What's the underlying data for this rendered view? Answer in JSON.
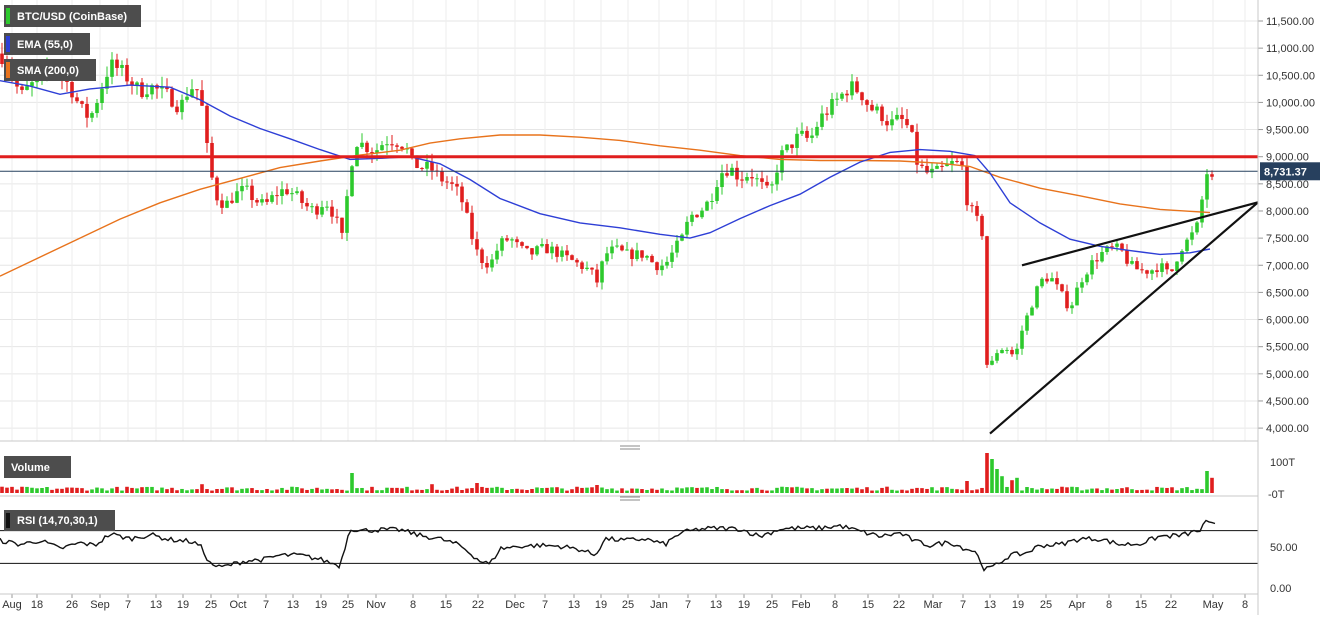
{
  "chart_data": {
    "type": "candlestick",
    "title": "BTC/USD (CoinBase)",
    "indicators": {
      "ema": {
        "label": "EMA (55,0)",
        "color": "#2e3fd6"
      },
      "sma": {
        "label": "SMA (200,0)",
        "color": "#e8731c"
      }
    },
    "price_axis": {
      "ticks": [
        "11,500.00",
        "11,000.00",
        "10,500.00",
        "10,000.00",
        "9,500.00",
        "9,000.00",
        "8,500.00",
        "8,000.00",
        "7,500.00",
        "7,000.00",
        "6,500.00",
        "6,000.00",
        "5,500.00",
        "5,000.00",
        "4,500.00",
        "4,000.00"
      ],
      "tick_values": [
        11500,
        11000,
        10500,
        10000,
        9500,
        9000,
        8500,
        8000,
        7500,
        7000,
        6500,
        6000,
        5500,
        5000,
        4500,
        4000
      ],
      "ylim": [
        3720,
        11920
      ]
    },
    "last_price": {
      "label": "8,731.37",
      "value": 8731.37,
      "color": "#27405e"
    },
    "resistance": {
      "value": 9000,
      "color": "#e01e1e"
    },
    "date_axis": {
      "labels": [
        "Aug",
        "18",
        "26",
        "Sep",
        "7",
        "13",
        "19",
        "25",
        "Oct",
        "7",
        "13",
        "19",
        "25",
        "Nov",
        "8",
        "15",
        "22",
        "Dec",
        "7",
        "13",
        "19",
        "25",
        "Jan",
        "7",
        "13",
        "19",
        "25",
        "Feb",
        "8",
        "15",
        "22",
        "Mar",
        "7",
        "13",
        "19",
        "25",
        "Apr",
        "8",
        "15",
        "22",
        "May",
        "8"
      ]
    },
    "series": {
      "close_key": [
        [
          0,
          10900
        ],
        [
          10,
          10700
        ],
        [
          20,
          10100
        ],
        [
          30,
          10300
        ],
        [
          40,
          10400
        ],
        [
          50,
          10700
        ],
        [
          60,
          10500
        ],
        [
          70,
          10300
        ],
        [
          80,
          9900
        ],
        [
          90,
          9700
        ],
        [
          100,
          10200
        ],
        [
          110,
          10700
        ],
        [
          120,
          10600
        ],
        [
          130,
          10400
        ],
        [
          140,
          10200
        ],
        [
          150,
          10300
        ],
        [
          160,
          10200
        ],
        [
          170,
          10100
        ],
        [
          180,
          9900
        ],
        [
          190,
          10300
        ],
        [
          200,
          10200
        ],
        [
          208,
          9000
        ],
        [
          215,
          8300
        ],
        [
          225,
          8100
        ],
        [
          235,
          8300
        ],
        [
          245,
          8400
        ],
        [
          255,
          8200
        ],
        [
          265,
          8100
        ],
        [
          275,
          8300
        ],
        [
          285,
          8400
        ],
        [
          295,
          8300
        ],
        [
          305,
          8100
        ],
        [
          315,
          8000
        ],
        [
          325,
          8200
        ],
        [
          335,
          7900
        ],
        [
          342,
          7500
        ],
        [
          350,
          8700
        ],
        [
          355,
          9300
        ],
        [
          365,
          9200
        ],
        [
          375,
          9100
        ],
        [
          385,
          9300
        ],
        [
          395,
          9300
        ],
        [
          405,
          9200
        ],
        [
          412,
          8900
        ],
        [
          420,
          8800
        ],
        [
          430,
          8800
        ],
        [
          440,
          8600
        ],
        [
          450,
          8500
        ],
        [
          460,
          8300
        ],
        [
          468,
          7800
        ],
        [
          475,
          7300
        ],
        [
          482,
          7100
        ],
        [
          490,
          7000
        ],
        [
          500,
          7400
        ],
        [
          510,
          7500
        ],
        [
          520,
          7300
        ],
        [
          530,
          7200
        ],
        [
          540,
          7300
        ],
        [
          550,
          7300
        ],
        [
          560,
          7200
        ],
        [
          570,
          7100
        ],
        [
          580,
          7000
        ],
        [
          590,
          6900
        ],
        [
          597,
          6700
        ],
        [
          605,
          7200
        ],
        [
          615,
          7300
        ],
        [
          625,
          7200
        ],
        [
          635,
          7200
        ],
        [
          645,
          7200
        ],
        [
          655,
          7000
        ],
        [
          665,
          7000
        ],
        [
          675,
          7300
        ],
        [
          682,
          7500
        ],
        [
          690,
          7900
        ],
        [
          700,
          8000
        ],
        [
          710,
          8200
        ],
        [
          720,
          8700
        ],
        [
          730,
          8800
        ],
        [
          740,
          8600
        ],
        [
          750,
          8700
        ],
        [
          760,
          8500
        ],
        [
          770,
          8300
        ],
        [
          780,
          9000
        ],
        [
          790,
          9200
        ],
        [
          800,
          9400
        ],
        [
          810,
          9300
        ],
        [
          820,
          9700
        ],
        [
          830,
          9900
        ],
        [
          840,
          10100
        ],
        [
          850,
          10300
        ],
        [
          860,
          10200
        ],
        [
          870,
          9900
        ],
        [
          880,
          9800
        ],
        [
          890,
          9600
        ],
        [
          900,
          9700
        ],
        [
          910,
          9500
        ],
        [
          917,
          8900
        ],
        [
          925,
          8700
        ],
        [
          935,
          8700
        ],
        [
          945,
          8800
        ],
        [
          955,
          8900
        ],
        [
          962,
          8800
        ],
        [
          968,
          8100
        ],
        [
          975,
          7900
        ],
        [
          982,
          7600
        ],
        [
          986,
          5200
        ],
        [
          990,
          5100
        ],
        [
          996,
          5400
        ],
        [
          1005,
          5500
        ],
        [
          1015,
          5300
        ],
        [
          1022,
          5800
        ],
        [
          1030,
          6200
        ],
        [
          1040,
          6700
        ],
        [
          1050,
          6800
        ],
        [
          1060,
          6500
        ],
        [
          1070,
          6200
        ],
        [
          1080,
          6700
        ],
        [
          1090,
          7000
        ],
        [
          1100,
          7200
        ],
        [
          1110,
          7300
        ],
        [
          1120,
          7300
        ],
        [
          1130,
          7000
        ],
        [
          1140,
          6900
        ],
        [
          1150,
          6900
        ],
        [
          1160,
          7000
        ],
        [
          1170,
          6800
        ],
        [
          1180,
          7300
        ],
        [
          1190,
          7500
        ],
        [
          1200,
          7800
        ],
        [
          1205,
          8800
        ],
        [
          1211,
          8500
        ],
        [
          1216,
          8731
        ]
      ],
      "ema_key": [
        [
          0,
          10400
        ],
        [
          30,
          10300
        ],
        [
          60,
          10150
        ],
        [
          90,
          10250
        ],
        [
          130,
          10320
        ],
        [
          170,
          10280
        ],
        [
          200,
          10050
        ],
        [
          230,
          9750
        ],
        [
          260,
          9520
        ],
        [
          290,
          9330
        ],
        [
          320,
          9130
        ],
        [
          350,
          8950
        ],
        [
          380,
          8970
        ],
        [
          410,
          9000
        ],
        [
          440,
          8870
        ],
        [
          470,
          8580
        ],
        [
          500,
          8230
        ],
        [
          540,
          7950
        ],
        [
          580,
          7780
        ],
        [
          620,
          7690
        ],
        [
          660,
          7570
        ],
        [
          690,
          7500
        ],
        [
          710,
          7600
        ],
        [
          740,
          7860
        ],
        [
          770,
          8100
        ],
        [
          800,
          8310
        ],
        [
          830,
          8620
        ],
        [
          860,
          8900
        ],
        [
          890,
          9080
        ],
        [
          920,
          9130
        ],
        [
          950,
          9100
        ],
        [
          975,
          9020
        ],
        [
          990,
          8700
        ],
        [
          1010,
          8150
        ],
        [
          1040,
          7780
        ],
        [
          1070,
          7480
        ],
        [
          1100,
          7350
        ],
        [
          1130,
          7270
        ],
        [
          1160,
          7200
        ],
        [
          1190,
          7230
        ],
        [
          1210,
          7300
        ]
      ],
      "sma_key": [
        [
          0,
          6800
        ],
        [
          40,
          7150
        ],
        [
          80,
          7500
        ],
        [
          120,
          7850
        ],
        [
          160,
          8150
        ],
        [
          200,
          8400
        ],
        [
          240,
          8600
        ],
        [
          280,
          8800
        ],
        [
          320,
          8920
        ],
        [
          360,
          9030
        ],
        [
          400,
          9120
        ],
        [
          430,
          9250
        ],
        [
          460,
          9330
        ],
        [
          500,
          9400
        ],
        [
          540,
          9400
        ],
        [
          580,
          9360
        ],
        [
          620,
          9300
        ],
        [
          660,
          9200
        ],
        [
          700,
          9120
        ],
        [
          740,
          9020
        ],
        [
          780,
          8950
        ],
        [
          820,
          8930
        ],
        [
          860,
          8930
        ],
        [
          900,
          8920
        ],
        [
          940,
          8880
        ],
        [
          970,
          8820
        ],
        [
          1000,
          8620
        ],
        [
          1040,
          8420
        ],
        [
          1080,
          8280
        ],
        [
          1120,
          8130
        ],
        [
          1160,
          8030
        ],
        [
          1210,
          7970
        ]
      ],
      "volume_spikes": [
        [
          204,
          22
        ],
        [
          350,
          50
        ],
        [
          432,
          22
        ],
        [
          475,
          25
        ],
        [
          596,
          20
        ],
        [
          968,
          30
        ],
        [
          986,
          100
        ],
        [
          992,
          85
        ],
        [
          998,
          60
        ],
        [
          1004,
          42
        ],
        [
          1010,
          32
        ],
        [
          1016,
          38
        ],
        [
          1205,
          55
        ],
        [
          1212,
          38
        ]
      ]
    },
    "trendlines": [
      {
        "from": {
          "t": 990,
          "price": 3900
        },
        "to": {
          "t": 1258,
          "price": 8160
        },
        "color": "#111111"
      },
      {
        "from": {
          "t": 1022,
          "price": 7000
        },
        "to": {
          "t": 1258,
          "price": 8160
        },
        "color": "#111111"
      }
    ],
    "volume": {
      "label": "Volume",
      "axis_labels": [
        "100T",
        "-0T"
      ],
      "up_color": "#2dc92d",
      "down_color": "#e01e1e"
    },
    "rsi": {
      "label": "RSI (14,70,30,1)",
      "axis_labels": [
        "50.00",
        "0.00"
      ],
      "upper": 70,
      "lower": 30,
      "key": [
        [
          0,
          58
        ],
        [
          20,
          53
        ],
        [
          40,
          58
        ],
        [
          60,
          48
        ],
        [
          80,
          55
        ],
        [
          95,
          52
        ],
        [
          110,
          66
        ],
        [
          130,
          60
        ],
        [
          150,
          65
        ],
        [
          170,
          59
        ],
        [
          190,
          57
        ],
        [
          200,
          52
        ],
        [
          210,
          30
        ],
        [
          220,
          25
        ],
        [
          230,
          28
        ],
        [
          245,
          33
        ],
        [
          265,
          35
        ],
        [
          280,
          40
        ],
        [
          300,
          40
        ],
        [
          320,
          35
        ],
        [
          340,
          27
        ],
        [
          350,
          73
        ],
        [
          360,
          70
        ],
        [
          380,
          71
        ],
        [
          400,
          71
        ],
        [
          420,
          64
        ],
        [
          440,
          60
        ],
        [
          460,
          52
        ],
        [
          480,
          33
        ],
        [
          490,
          29
        ],
        [
          500,
          48
        ],
        [
          520,
          51
        ],
        [
          540,
          52
        ],
        [
          560,
          51
        ],
        [
          580,
          47
        ],
        [
          595,
          40
        ],
        [
          605,
          60
        ],
        [
          625,
          58
        ],
        [
          645,
          60
        ],
        [
          665,
          53
        ],
        [
          680,
          67
        ],
        [
          700,
          72
        ],
        [
          720,
          73
        ],
        [
          740,
          72
        ],
        [
          760,
          63
        ],
        [
          780,
          72
        ],
        [
          800,
          73
        ],
        [
          820,
          73
        ],
        [
          840,
          76
        ],
        [
          860,
          69
        ],
        [
          880,
          63
        ],
        [
          900,
          67
        ],
        [
          915,
          57
        ],
        [
          930,
          52
        ],
        [
          950,
          56
        ],
        [
          965,
          48
        ],
        [
          975,
          45
        ],
        [
          985,
          22
        ],
        [
          995,
          27
        ],
        [
          1010,
          40
        ],
        [
          1025,
          42
        ],
        [
          1040,
          52
        ],
        [
          1060,
          53
        ],
        [
          1080,
          60
        ],
        [
          1100,
          60
        ],
        [
          1120,
          53
        ],
        [
          1140,
          54
        ],
        [
          1160,
          63
        ],
        [
          1180,
          64
        ],
        [
          1200,
          70
        ],
        [
          1205,
          80
        ],
        [
          1216,
          76
        ]
      ]
    }
  }
}
